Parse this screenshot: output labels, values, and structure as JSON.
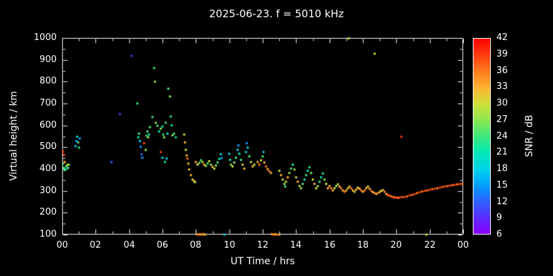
{
  "chart_data": {
    "type": "scatter",
    "title": "2025-06-23. f = 5010 kHz",
    "xlabel": "UT Time / hrs",
    "ylabel": "Virtual height / km",
    "colorbar_label": "SNR / dB",
    "background": "#000000",
    "axis_color": "#ffffff",
    "xlim": [
      0,
      24
    ],
    "ylim": [
      100,
      1000
    ],
    "xtick_values": [
      0,
      2,
      4,
      6,
      8,
      10,
      12,
      14,
      16,
      18,
      20,
      22,
      24
    ],
    "xtick_labels": [
      "00",
      "02",
      "04",
      "06",
      "08",
      "10",
      "12",
      "14",
      "16",
      "18",
      "20",
      "22",
      "00"
    ],
    "ytick_values": [
      100,
      200,
      300,
      400,
      500,
      600,
      700,
      800,
      900,
      1000
    ],
    "ytick_labels": [
      "100",
      "200",
      "300",
      "400",
      "500",
      "600",
      "700",
      "800",
      "900",
      "1000"
    ],
    "colorbar": {
      "tick_values": [
        6,
        9,
        12,
        15,
        18,
        21,
        24,
        27,
        30,
        33,
        36,
        39,
        42
      ],
      "tick_labels": [
        "6",
        "9",
        "12",
        "15",
        "18",
        "21",
        "24",
        "27",
        "30",
        "33",
        "36",
        "39",
        "42"
      ],
      "stops": [
        [
          6,
          "#8a00ff"
        ],
        [
          9,
          "#5a2bff"
        ],
        [
          12,
          "#2e62ff"
        ],
        [
          15,
          "#00a0ff"
        ],
        [
          18,
          "#00d4e8"
        ],
        [
          21,
          "#00e8b8"
        ],
        [
          24,
          "#3ce87c"
        ],
        [
          27,
          "#8ce850"
        ],
        [
          30,
          "#cfe03a"
        ],
        [
          33,
          "#ffb232"
        ],
        [
          36,
          "#ff7a1e"
        ],
        [
          39,
          "#ff3c0e"
        ],
        [
          42,
          "#ff0000"
        ]
      ]
    },
    "points": [
      [
        0.05,
        480,
        39
      ],
      [
        0.1,
        465,
        39
      ],
      [
        0.05,
        425,
        24
      ],
      [
        0.1,
        405,
        24
      ],
      [
        0.15,
        395,
        27
      ],
      [
        0.2,
        400,
        21
      ],
      [
        0.25,
        412,
        24
      ],
      [
        0.3,
        418,
        30
      ],
      [
        0.35,
        405,
        24
      ],
      [
        0.15,
        432,
        33
      ],
      [
        0.4,
        420,
        27
      ],
      [
        0.8,
        505,
        18
      ],
      [
        0.85,
        528,
        15
      ],
      [
        0.9,
        548,
        21
      ],
      [
        0.95,
        522,
        24
      ],
      [
        1.0,
        498,
        24
      ],
      [
        1.05,
        540,
        15
      ],
      [
        2.95,
        432,
        12
      ],
      [
        3.45,
        652,
        9
      ],
      [
        4.15,
        918,
        9
      ],
      [
        4.5,
        700,
        24
      ],
      [
        4.55,
        545,
        21
      ],
      [
        4.6,
        562,
        24
      ],
      [
        4.65,
        528,
        18
      ],
      [
        4.7,
        502,
        15
      ],
      [
        4.75,
        468,
        12
      ],
      [
        4.8,
        452,
        15
      ],
      [
        4.9,
        518,
        39
      ],
      [
        5.0,
        488,
        27
      ],
      [
        5.05,
        552,
        24
      ],
      [
        5.1,
        572,
        24
      ],
      [
        5.15,
        545,
        27
      ],
      [
        5.2,
        558,
        21
      ],
      [
        5.25,
        592,
        24
      ],
      [
        5.5,
        862,
        24
      ],
      [
        5.55,
        800,
        27
      ],
      [
        6.35,
        768,
        24
      ],
      [
        6.45,
        732,
        27
      ],
      [
        5.4,
        638,
        24
      ],
      [
        5.6,
        612,
        27
      ],
      [
        5.7,
        598,
        24
      ],
      [
        5.8,
        572,
        21
      ],
      [
        5.9,
        585,
        27
      ],
      [
        6.0,
        595,
        21
      ],
      [
        6.05,
        558,
        24
      ],
      [
        6.1,
        545,
        27
      ],
      [
        6.2,
        612,
        24
      ],
      [
        6.3,
        562,
        21
      ],
      [
        6.5,
        640,
        24
      ],
      [
        6.55,
        600,
        21
      ],
      [
        6.6,
        555,
        27
      ],
      [
        6.7,
        562,
        24
      ],
      [
        6.8,
        545,
        21
      ],
      [
        5.9,
        478,
        39
      ],
      [
        6.0,
        452,
        18
      ],
      [
        6.15,
        432,
        21
      ],
      [
        6.25,
        448,
        18
      ],
      [
        7.3,
        558,
        30
      ],
      [
        7.35,
        522,
        33
      ],
      [
        7.4,
        488,
        30
      ],
      [
        7.45,
        462,
        33
      ],
      [
        7.5,
        448,
        36
      ],
      [
        7.55,
        425,
        33
      ],
      [
        7.6,
        398,
        33
      ],
      [
        7.7,
        372,
        33
      ],
      [
        7.8,
        352,
        30
      ],
      [
        7.9,
        345,
        33
      ],
      [
        7.95,
        340,
        30
      ],
      [
        8.05,
        102,
        33
      ],
      [
        8.15,
        100,
        36
      ],
      [
        8.25,
        102,
        33
      ],
      [
        8.35,
        100,
        36
      ],
      [
        8.45,
        102,
        33
      ],
      [
        8.55,
        100,
        33
      ],
      [
        8.0,
        432,
        33
      ],
      [
        8.1,
        420,
        30
      ],
      [
        8.2,
        428,
        27
      ],
      [
        8.3,
        440,
        24
      ],
      [
        8.4,
        432,
        30
      ],
      [
        8.5,
        420,
        33
      ],
      [
        8.6,
        414,
        27
      ],
      [
        8.7,
        426,
        24
      ],
      [
        8.8,
        436,
        30
      ],
      [
        8.9,
        420,
        27
      ],
      [
        9.0,
        410,
        33
      ],
      [
        9.1,
        402,
        30
      ],
      [
        9.2,
        416,
        27
      ],
      [
        9.3,
        430,
        24
      ],
      [
        9.4,
        446,
        21
      ],
      [
        9.5,
        468,
        18
      ],
      [
        9.55,
        450,
        15
      ],
      [
        9.7,
        100,
        18
      ],
      [
        10.0,
        470,
        18
      ],
      [
        10.05,
        442,
        21
      ],
      [
        10.1,
        420,
        27
      ],
      [
        10.2,
        412,
        30
      ],
      [
        10.3,
        430,
        27
      ],
      [
        10.4,
        452,
        24
      ],
      [
        10.5,
        488,
        18
      ],
      [
        10.55,
        508,
        15
      ],
      [
        10.6,
        470,
        21
      ],
      [
        10.7,
        442,
        24
      ],
      [
        10.8,
        420,
        30
      ],
      [
        10.9,
        402,
        33
      ],
      [
        11.0,
        478,
        18
      ],
      [
        11.05,
        518,
        15
      ],
      [
        11.1,
        498,
        18
      ],
      [
        11.2,
        458,
        24
      ],
      [
        11.3,
        432,
        30
      ],
      [
        11.4,
        412,
        33
      ],
      [
        11.5,
        420,
        30
      ],
      [
        11.7,
        432,
        33
      ],
      [
        11.8,
        420,
        36
      ],
      [
        11.9,
        440,
        30
      ],
      [
        12.0,
        458,
        24
      ],
      [
        12.05,
        478,
        18
      ],
      [
        12.1,
        430,
        33
      ],
      [
        12.2,
        412,
        36
      ],
      [
        12.3,
        400,
        33
      ],
      [
        12.4,
        390,
        36
      ],
      [
        12.5,
        382,
        33
      ],
      [
        12.55,
        102,
        33
      ],
      [
        12.65,
        100,
        36
      ],
      [
        12.75,
        102,
        33
      ],
      [
        12.85,
        100,
        36
      ],
      [
        13.0,
        100,
        33
      ],
      [
        13.0,
        392,
        30
      ],
      [
        13.1,
        372,
        33
      ],
      [
        13.2,
        352,
        30
      ],
      [
        13.3,
        332,
        27
      ],
      [
        13.35,
        320,
        24
      ],
      [
        13.4,
        342,
        30
      ],
      [
        13.5,
        362,
        33
      ],
      [
        13.6,
        382,
        27
      ],
      [
        13.7,
        402,
        24
      ],
      [
        13.8,
        420,
        21
      ],
      [
        13.9,
        398,
        27
      ],
      [
        14.0,
        362,
        30
      ],
      [
        14.1,
        342,
        33
      ],
      [
        14.2,
        322,
        30
      ],
      [
        14.3,
        312,
        27
      ],
      [
        14.4,
        332,
        24
      ],
      [
        14.5,
        352,
        21
      ],
      [
        14.6,
        372,
        24
      ],
      [
        14.7,
        392,
        21
      ],
      [
        14.8,
        408,
        24
      ],
      [
        14.9,
        382,
        27
      ],
      [
        15.0,
        352,
        30
      ],
      [
        15.1,
        332,
        33
      ],
      [
        15.2,
        312,
        30
      ],
      [
        15.3,
        322,
        27
      ],
      [
        15.4,
        342,
        24
      ],
      [
        15.5,
        362,
        21
      ],
      [
        15.6,
        380,
        24
      ],
      [
        15.7,
        352,
        27
      ],
      [
        15.8,
        332,
        30
      ],
      [
        15.9,
        312,
        33
      ],
      [
        16.0,
        322,
        33
      ],
      [
        16.1,
        312,
        36
      ],
      [
        16.2,
        302,
        33
      ],
      [
        16.3,
        312,
        30
      ],
      [
        16.4,
        322,
        27
      ],
      [
        16.5,
        330,
        30
      ],
      [
        16.6,
        320,
        33
      ],
      [
        16.7,
        312,
        36
      ],
      [
        16.8,
        302,
        33
      ],
      [
        16.9,
        296,
        36
      ],
      [
        17.0,
        302,
        33
      ],
      [
        17.1,
        312,
        30
      ],
      [
        17.2,
        320,
        33
      ],
      [
        17.3,
        312,
        36
      ],
      [
        17.4,
        302,
        33
      ],
      [
        17.5,
        296,
        30
      ],
      [
        17.6,
        306,
        33
      ],
      [
        17.7,
        315,
        30
      ],
      [
        17.8,
        310,
        33
      ],
      [
        17.9,
        302,
        36
      ],
      [
        17.15,
        998,
        30
      ],
      [
        18.7,
        928,
        30
      ],
      [
        18.0,
        296,
        33
      ],
      [
        18.1,
        302,
        36
      ],
      [
        18.2,
        312,
        33
      ],
      [
        18.3,
        320,
        30
      ],
      [
        18.4,
        310,
        33
      ],
      [
        18.5,
        300,
        36
      ],
      [
        18.6,
        294,
        33
      ],
      [
        18.7,
        290,
        36
      ],
      [
        18.8,
        286,
        33
      ],
      [
        18.9,
        290,
        36
      ],
      [
        19.0,
        295,
        33
      ],
      [
        19.1,
        300,
        30
      ],
      [
        19.2,
        304,
        33
      ],
      [
        19.3,
        296,
        36
      ],
      [
        19.4,
        286,
        33
      ],
      [
        19.5,
        280,
        36
      ],
      [
        19.6,
        278,
        39
      ],
      [
        19.7,
        275,
        36
      ],
      [
        19.8,
        272,
        39
      ],
      [
        19.9,
        270,
        36
      ],
      [
        20.3,
        548,
        39
      ],
      [
        20.0,
        270,
        39
      ],
      [
        20.1,
        268,
        36
      ],
      [
        20.2,
        270,
        39
      ],
      [
        20.35,
        272,
        36
      ],
      [
        20.5,
        272,
        39
      ],
      [
        20.65,
        275,
        36
      ],
      [
        20.8,
        280,
        39
      ],
      [
        20.95,
        282,
        36
      ],
      [
        21.1,
        286,
        39
      ],
      [
        21.25,
        290,
        36
      ],
      [
        21.4,
        294,
        39
      ],
      [
        21.55,
        297,
        36
      ],
      [
        21.7,
        300,
        39
      ],
      [
        21.85,
        302,
        36
      ],
      [
        22.0,
        305,
        39
      ],
      [
        22.15,
        308,
        36
      ],
      [
        22.3,
        310,
        39
      ],
      [
        22.45,
        312,
        36
      ],
      [
        22.6,
        315,
        39
      ],
      [
        22.75,
        318,
        36
      ],
      [
        22.9,
        320,
        39
      ],
      [
        23.05,
        322,
        36
      ],
      [
        23.2,
        324,
        39
      ],
      [
        23.35,
        326,
        36
      ],
      [
        23.5,
        328,
        39
      ],
      [
        23.65,
        330,
        36
      ],
      [
        23.8,
        331,
        39
      ],
      [
        23.95,
        332,
        36
      ],
      [
        21.8,
        100,
        30
      ]
    ]
  }
}
